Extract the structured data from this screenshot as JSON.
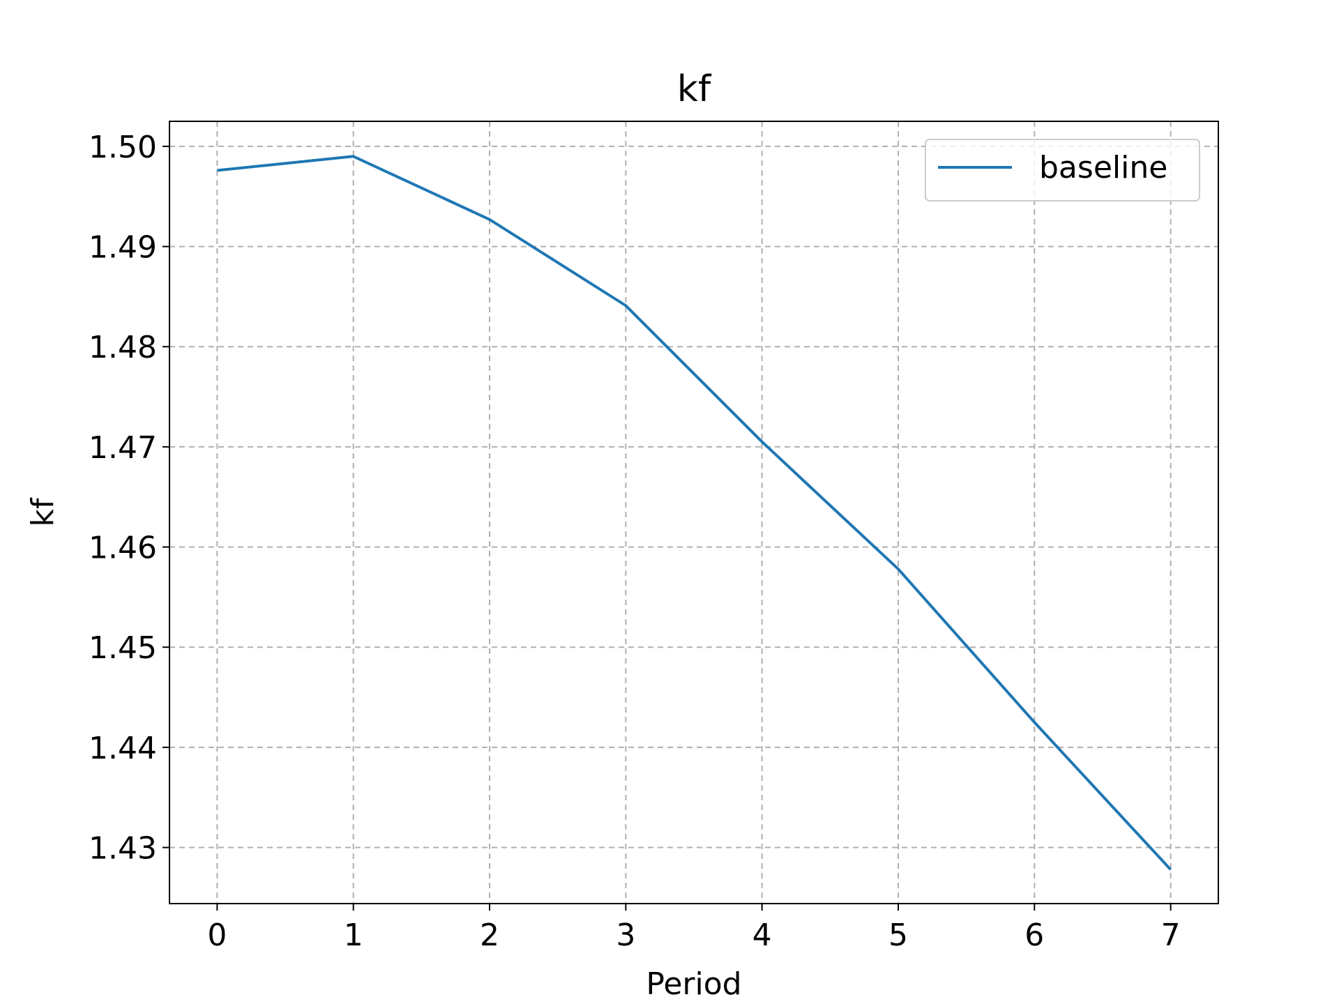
{
  "chart_data": {
    "type": "line",
    "title": "kf",
    "xlabel": "Period",
    "ylabel": "kf",
    "x": [
      0,
      1,
      2,
      3,
      4,
      5,
      6,
      7
    ],
    "series": [
      {
        "name": "baseline",
        "values": [
          1.4976,
          1.499,
          1.4927,
          1.4841,
          1.4705,
          1.4578,
          1.4425,
          1.4278
        ],
        "color": "#1f77b4"
      }
    ],
    "xticks": [
      "0",
      "1",
      "2",
      "3",
      "4",
      "5",
      "6",
      "7"
    ],
    "yticks": [
      "1.43",
      "1.44",
      "1.45",
      "1.46",
      "1.47",
      "1.48",
      "1.49",
      "1.50"
    ],
    "xlim": [
      -0.35,
      7.35
    ],
    "ylim": [
      1.4244,
      1.5025
    ],
    "grid": true,
    "grid_style": "dashed",
    "legend_position": "top-right"
  }
}
